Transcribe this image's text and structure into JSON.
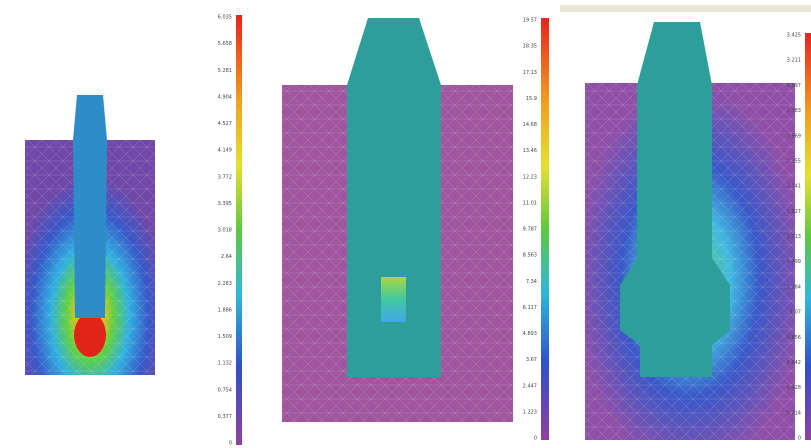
{
  "panels": [
    {
      "colorbar_labels": [
        "6.035",
        "5.658",
        "5.281",
        "4.904",
        "4.527",
        "4.149",
        "3.772",
        "3.395",
        "3.018",
        "2.64",
        "2.263",
        "1.886",
        "1.509",
        "1.132",
        "0.754",
        "0.377",
        "0"
      ]
    },
    {
      "colorbar_labels": [
        "19.57",
        "18.35",
        "17.13",
        "15.9",
        "14.68",
        "13.46",
        "12.23",
        "11.01",
        "9.787",
        "8.563",
        "7.34",
        "6.117",
        "4.893",
        "3.67",
        "2.447",
        "1.223",
        "0"
      ]
    },
    {
      "colorbar_labels": [
        "3.425",
        "3.211",
        "2.997",
        "2.783",
        "2.569",
        "2.355",
        "2.141",
        "1.927",
        "1.713",
        "1.499",
        "1.284",
        "1.07",
        "0.856",
        "0.642",
        "0.428",
        "0.214",
        "0"
      ]
    }
  ]
}
